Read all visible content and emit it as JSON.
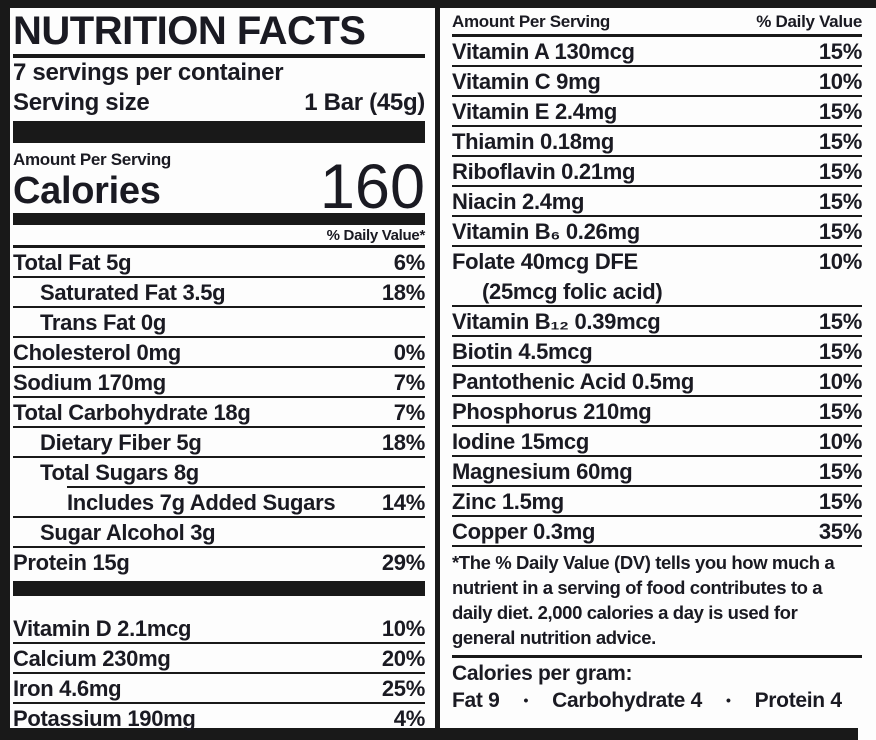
{
  "colors": {
    "ink": "#1a1a22",
    "bar": "#191919",
    "background": "#fdfdfd"
  },
  "label": {
    "title": "NUTRITION FACTS",
    "servings_line": "7 servings per container",
    "serving_size_label": "Serving size",
    "serving_size_value": "1 Bar (45g)",
    "amount_per_serving": "Amount Per Serving",
    "calories_label": "Calories",
    "calories_value": "160",
    "daily_value_header": "% Daily Value*",
    "nutrients": [
      {
        "text": "Total Fat 5g",
        "dv": "6%",
        "indent": 0
      },
      {
        "text": "Saturated Fat 3.5g",
        "dv": "18%",
        "indent": 1
      },
      {
        "text": "Trans Fat 0g",
        "dv": "",
        "indent": 1
      },
      {
        "text": "Cholesterol 0mg",
        "dv": "0%",
        "indent": 0
      },
      {
        "text": "Sodium 170mg",
        "dv": "7%",
        "indent": 0
      },
      {
        "text": "Total Carbohydrate 18g",
        "dv": "7%",
        "indent": 0
      },
      {
        "text": "Dietary Fiber 5g",
        "dv": "18%",
        "indent": 1
      },
      {
        "text": "Total Sugars 8g",
        "dv": "",
        "indent": 1,
        "rule_indent": true
      },
      {
        "text": "Includes 7g Added Sugars",
        "dv": "14%",
        "indent": 2
      },
      {
        "text": "Sugar Alcohol 3g",
        "dv": "",
        "indent": 1
      },
      {
        "text": "Protein 15g",
        "dv": "29%",
        "indent": 0,
        "rule": false
      }
    ],
    "minerals": [
      {
        "text": "Vitamin D 2.1mcg",
        "dv": "10%"
      },
      {
        "text": "Calcium 230mg",
        "dv": "20%"
      },
      {
        "text": "Iron 4.6mg",
        "dv": "25%"
      },
      {
        "text": "Potassium 190mg",
        "dv": "4%",
        "rule": false
      }
    ]
  },
  "right_panel": {
    "amount_per_serving": "Amount Per Serving",
    "daily_value_header": "% Daily Value",
    "vitamins": [
      {
        "text": "Vitamin A 130mcg",
        "dv": "15%"
      },
      {
        "text": "Vitamin C 9mg",
        "dv": "10%"
      },
      {
        "text": "Vitamin E 2.4mg",
        "dv": "15%"
      },
      {
        "text": "Thiamin 0.18mg",
        "dv": "15%"
      },
      {
        "text": "Riboflavin 0.21mg",
        "dv": "15%"
      },
      {
        "text": "Niacin 2.4mg",
        "dv": "15%"
      },
      {
        "text": "Vitamin B₆ 0.26mg",
        "dv": "15%"
      },
      {
        "text": "Folate 40mcg DFE",
        "dv": "10%",
        "sub_line": "(25mcg folic acid)"
      },
      {
        "text": "Vitamin B₁₂ 0.39mcg",
        "dv": "15%"
      },
      {
        "text": "Biotin 4.5mcg",
        "dv": "15%"
      },
      {
        "text": "Pantothenic Acid 0.5mg",
        "dv": "10%"
      },
      {
        "text": "Phosphorus 210mg",
        "dv": "15%"
      },
      {
        "text": "Iodine 15mcg",
        "dv": "10%"
      },
      {
        "text": "Magnesium 60mg",
        "dv": "15%"
      },
      {
        "text": "Zinc 1.5mg",
        "dv": "15%"
      },
      {
        "text": "Copper 0.3mg",
        "dv": "35%"
      }
    ],
    "footnote": "*The % Daily Value (DV) tells you how much a nutrient in a serving of food contributes to a daily diet. 2,000 calories a day is used for general nutrition advice.",
    "calories_per_gram": {
      "label": "Calories per gram:",
      "items": [
        "Fat 9",
        "Carbohydrate 4",
        "Protein 4"
      ],
      "separator": "•"
    }
  }
}
